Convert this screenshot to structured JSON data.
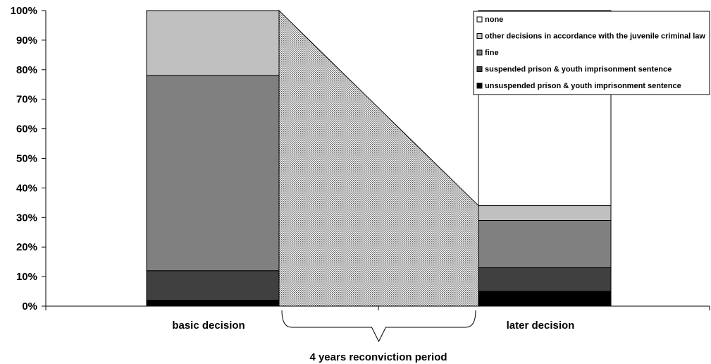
{
  "chart_data": {
    "type": "bar",
    "stacked": true,
    "categories": [
      "basic decision",
      "later decision"
    ],
    "ylim": [
      0,
      100
    ],
    "yticks": [
      "0%",
      "10%",
      "20%",
      "30%",
      "40%",
      "50%",
      "60%",
      "70%",
      "80%",
      "90%",
      "100%"
    ],
    "series": [
      {
        "name": "unsuspended prison & youth imprisonment sentence",
        "values": [
          2,
          5
        ],
        "color": "#000000"
      },
      {
        "name": "suspended prison & youth imprisonment sentence",
        "values": [
          10,
          8
        ],
        "color": "#404040"
      },
      {
        "name": "fine",
        "values": [
          66,
          16
        ],
        "color": "#808080"
      },
      {
        "name": "other decisions in accordance with the juvenile criminal law",
        "values": [
          22,
          5
        ],
        "color": "#c0c0c0"
      },
      {
        "name": "none",
        "values": [
          0,
          66
        ],
        "color": "#ffffff"
      }
    ],
    "legend_position": "top-right",
    "legend_order": [
      4,
      3,
      2,
      1,
      0
    ],
    "grid": false,
    "connector": {
      "from": "basic decision",
      "to": "later decision",
      "start_value": 100,
      "end_value": 34,
      "fill": "dotted-gray"
    },
    "annotation": "4 years reconviction period"
  }
}
